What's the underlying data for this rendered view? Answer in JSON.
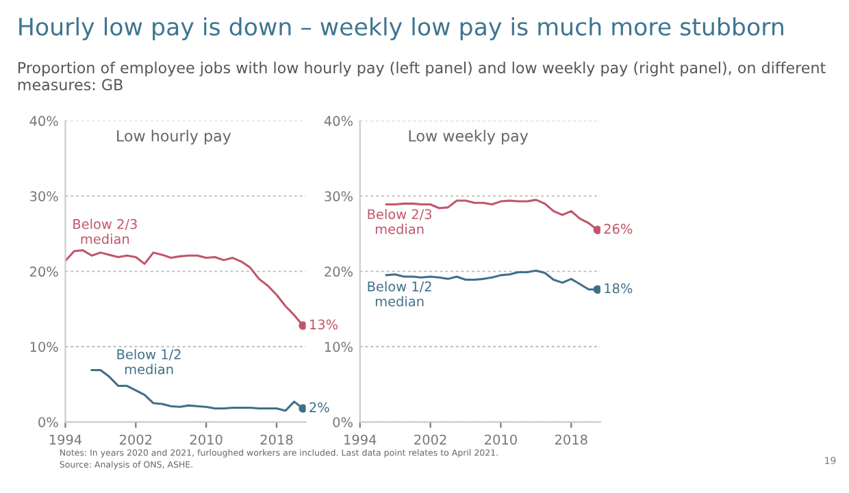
{
  "chart_data": [
    {
      "type": "line",
      "title": "Hourly low pay is down – weekly low pay is much more stubborn",
      "subtitle": "Proportion of employee jobs with low hourly pay (left panel) and low weekly pay (right panel), on different measures: GB",
      "annotations": [
        "Low hourly pay",
        "Notes: In years 2020 and 2021, furloughed workers are included. Last data point relates to April 2021.",
        "Source: Analysis of ONS, ASHE.",
        "19"
      ],
      "xlim": [
        1994,
        2021.3
      ],
      "xticks": [
        1994,
        2002,
        2010,
        2018
      ],
      "ylim": [
        0,
        40
      ],
      "yticks": [
        {
          "value": 0,
          "label": "0%"
        },
        {
          "value": 10,
          "label": "10%"
        },
        {
          "value": 20,
          "label": "20%"
        },
        {
          "value": 30,
          "label": "30%"
        },
        {
          "value": 40,
          "label": "40%"
        }
      ],
      "grid": "y",
      "legend": false,
      "series": [
        {
          "name": "Below 2/3 median",
          "color": "#c0566a",
          "x": [
            1994,
            1995,
            1996,
            1997,
            1998,
            1999,
            2000,
            2001,
            2002,
            2003,
            2004,
            2005,
            2006,
            2007,
            2008,
            2009,
            2010,
            2011,
            2012,
            2013,
            2014,
            2015,
            2016,
            2017,
            2018,
            2019,
            2020,
            2021
          ],
          "values": [
            21.4,
            22.7,
            22.8,
            22.1,
            22.5,
            22.2,
            21.9,
            22.1,
            21.9,
            21.0,
            22.5,
            22.2,
            21.8,
            22.0,
            22.1,
            22.1,
            21.8,
            21.9,
            21.5,
            21.8,
            21.3,
            20.5,
            19.0,
            18.1,
            16.9,
            15.4,
            14.2,
            12.8
          ],
          "value_labels": [
            null,
            null,
            null,
            null,
            null,
            null,
            null,
            null,
            null,
            null,
            null,
            null,
            null,
            null,
            null,
            null,
            null,
            null,
            null,
            null,
            null,
            null,
            null,
            null,
            null,
            null,
            null,
            "13%"
          ]
        },
        {
          "name": "Below 1/2 median",
          "color": "#3f7089",
          "x": [
            1997,
            1998,
            1999,
            2000,
            2001,
            2002,
            2003,
            2004,
            2005,
            2006,
            2007,
            2008,
            2009,
            2010,
            2011,
            2012,
            2013,
            2014,
            2015,
            2016,
            2017,
            2018,
            2019,
            2020,
            2021
          ],
          "values": [
            6.9,
            6.9,
            6.0,
            4.8,
            4.8,
            4.2,
            3.6,
            2.5,
            2.4,
            2.1,
            2.0,
            2.2,
            2.1,
            2.0,
            1.8,
            1.8,
            1.9,
            1.9,
            1.9,
            1.8,
            1.8,
            1.8,
            1.5,
            2.7,
            1.8
          ],
          "value_labels": [
            null,
            null,
            null,
            null,
            null,
            null,
            null,
            null,
            null,
            null,
            null,
            null,
            null,
            null,
            null,
            null,
            null,
            null,
            null,
            null,
            null,
            null,
            null,
            null,
            "2%"
          ]
        }
      ]
    },
    {
      "type": "line",
      "annotations": [
        "Low weekly pay"
      ],
      "xlim": [
        1994,
        2021.3
      ],
      "xticks": [
        1994,
        2002,
        2010,
        2018
      ],
      "ylim": [
        0,
        40
      ],
      "yticks": [
        {
          "value": 0,
          "label": "0%"
        },
        {
          "value": 10,
          "label": "10%"
        },
        {
          "value": 20,
          "label": "20%"
        },
        {
          "value": 30,
          "label": "30%"
        },
        {
          "value": 40,
          "label": "40%"
        }
      ],
      "grid": "y",
      "legend": false,
      "series": [
        {
          "name": "Below 2/3 median",
          "color": "#c0566a",
          "x": [
            1997,
            1998,
            1999,
            2000,
            2001,
            2002,
            2003,
            2004,
            2005,
            2006,
            2007,
            2008,
            2009,
            2010,
            2011,
            2012,
            2013,
            2014,
            2015,
            2016,
            2017,
            2018,
            2019,
            2020,
            2021
          ],
          "values": [
            28.9,
            28.9,
            29.0,
            29.0,
            28.9,
            28.9,
            28.4,
            28.5,
            29.4,
            29.4,
            29.1,
            29.1,
            28.9,
            29.3,
            29.4,
            29.3,
            29.3,
            29.5,
            29.0,
            28.0,
            27.5,
            28.0,
            27.0,
            26.4,
            25.5
          ],
          "value_labels": [
            null,
            null,
            null,
            null,
            null,
            null,
            null,
            null,
            null,
            null,
            null,
            null,
            null,
            null,
            null,
            null,
            null,
            null,
            null,
            null,
            null,
            null,
            null,
            null,
            "26%"
          ]
        },
        {
          "name": "Below 1/2 median",
          "color": "#3f7089",
          "x": [
            1997,
            1998,
            1999,
            2000,
            2001,
            2002,
            2003,
            2004,
            2005,
            2006,
            2007,
            2008,
            2009,
            2010,
            2011,
            2012,
            2013,
            2014,
            2015,
            2016,
            2017,
            2018,
            2019,
            2020,
            2021
          ],
          "values": [
            19.5,
            19.6,
            19.3,
            19.3,
            19.2,
            19.3,
            19.2,
            19.0,
            19.3,
            18.9,
            18.9,
            19.0,
            19.2,
            19.5,
            19.6,
            19.9,
            19.9,
            20.1,
            19.8,
            18.9,
            18.5,
            19.0,
            18.3,
            17.6,
            17.6
          ],
          "value_labels": [
            null,
            null,
            null,
            null,
            null,
            null,
            null,
            null,
            null,
            null,
            null,
            null,
            null,
            null,
            null,
            null,
            null,
            null,
            null,
            null,
            null,
            null,
            null,
            null,
            "18%"
          ]
        }
      ]
    }
  ]
}
